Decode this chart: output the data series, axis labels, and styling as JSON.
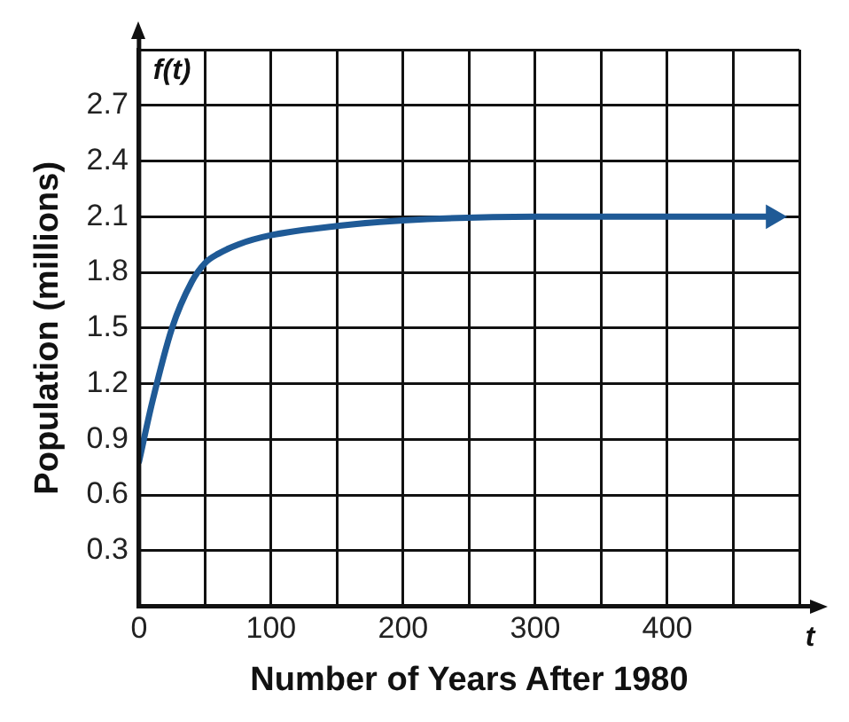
{
  "chart_data": {
    "type": "line",
    "xlabel": "Number of Years After 1980",
    "ylabel": "Population (millions)",
    "annotations": [
      "f(t)",
      "t"
    ],
    "x": [
      0,
      10,
      25,
      40,
      50,
      60,
      75,
      100,
      150,
      200,
      300,
      400,
      480
    ],
    "series": [
      {
        "color": "#1f5a96",
        "values": [
          0.78,
          1.1,
          1.5,
          1.75,
          1.85,
          1.9,
          1.95,
          2.0,
          2.05,
          2.08,
          2.1,
          2.1,
          2.1
        ]
      }
    ],
    "xlim": [
      0,
      500
    ],
    "xticks": [
      0,
      {
        "value": 50,
        "label": null
      },
      100,
      {
        "value": 150,
        "label": null
      },
      200,
      {
        "value": 250,
        "label": null
      },
      300,
      {
        "value": 350,
        "label": null
      },
      400,
      {
        "value": 450,
        "label": null
      },
      {
        "value": 500,
        "label": null
      }
    ],
    "ylim": [
      0,
      3
    ],
    "yticks": [
      {
        "value": 0,
        "label": null
      },
      0.3,
      0.6,
      0.9,
      1.2,
      1.5,
      1.8,
      2.1,
      2.4,
      2.7,
      {
        "value": 3,
        "label": null
      }
    ],
    "grid": true,
    "legend": false,
    "marker": "none",
    "line_style": "solid"
  }
}
